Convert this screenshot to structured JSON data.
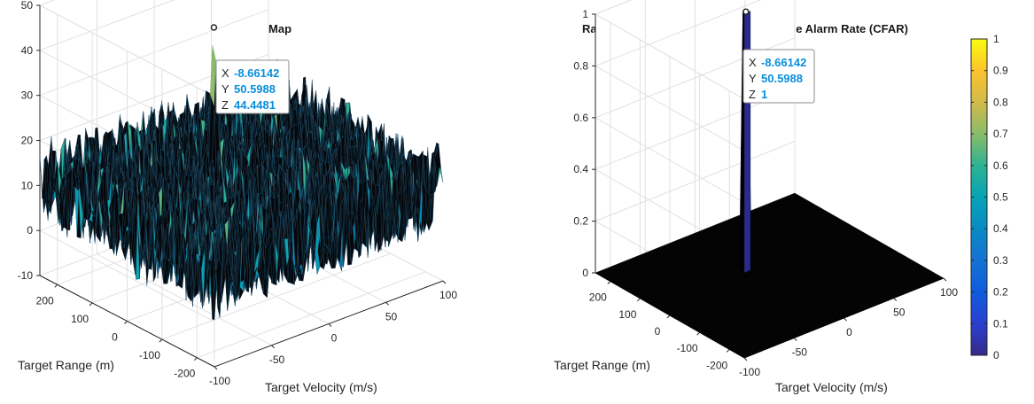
{
  "colors": {
    "datatip_value": "#0a8fdc",
    "axis": "#262626",
    "grid": "#e1e1e1"
  },
  "chart_data": [
    {
      "type": "surface",
      "title": "Range Doppler Map",
      "xlabel": "Target Velocity (m/s)",
      "ylabel": "Target Range (m)",
      "zlabel": "",
      "xlim": [
        -100,
        100
      ],
      "ylim": [
        -250,
        250
      ],
      "zlim": [
        -10,
        50
      ],
      "x_ticks": [
        -100,
        -50,
        0,
        50,
        100
      ],
      "y_ticks": [
        -200,
        -100,
        0,
        100,
        200
      ],
      "z_ticks": [
        -10,
        0,
        10,
        20,
        30,
        40,
        50
      ],
      "x_tick_labels": [
        "-100",
        "-50",
        "0",
        "50",
        "100"
      ],
      "y_tick_labels": [
        "-200",
        "-100",
        "0",
        "100",
        "200"
      ],
      "z_tick_labels": [
        "-10",
        "0",
        "10",
        "20",
        "30",
        "40",
        "50"
      ],
      "noise_floor_range": [
        0,
        20
      ],
      "peak": {
        "x": -8.66142,
        "y": 50.5988,
        "z": 44.4481
      },
      "datatip": {
        "x_key": "X",
        "x_val": "-8.66142",
        "y_key": "Y",
        "y_val": "50.5988",
        "z_key": "Z",
        "z_val": "44.4481"
      },
      "grid": true,
      "colormap": "parula"
    },
    {
      "type": "surface",
      "title": "Range Doppler Map with Constant False Alarm Rate (CFAR)",
      "xlabel": "Target Velocity (m/s)",
      "ylabel": "Target Range (m)",
      "zlabel": "",
      "xlim": [
        -100,
        100
      ],
      "ylim": [
        -250,
        250
      ],
      "zlim": [
        0,
        1
      ],
      "x_ticks": [
        -100,
        -50,
        0,
        50,
        100
      ],
      "y_ticks": [
        -200,
        -100,
        0,
        100,
        200
      ],
      "z_ticks": [
        0,
        0.2,
        0.4,
        0.6,
        0.8,
        1
      ],
      "x_tick_labels": [
        "-100",
        "-50",
        "0",
        "50",
        "100"
      ],
      "y_tick_labels": [
        "-200",
        "-100",
        "0",
        "100",
        "200"
      ],
      "z_tick_labels": [
        "0",
        "0.2",
        "0.4",
        "0.6",
        "0.8",
        "1"
      ],
      "peak": {
        "x": -8.66142,
        "y": 50.5988,
        "z": 1
      },
      "datatip": {
        "x_key": "X",
        "x_val": "-8.66142",
        "y_key": "Y",
        "y_val": "50.5988",
        "z_key": "Z",
        "z_val": "1"
      },
      "grid": true,
      "colormap": "parula",
      "colorbar": {
        "ticks": [
          0,
          0.1,
          0.2,
          0.3,
          0.4,
          0.5,
          0.6,
          0.7,
          0.8,
          0.9,
          1
        ],
        "tick_labels": [
          "0",
          "0.1",
          "0.2",
          "0.3",
          "0.4",
          "0.5",
          "0.6",
          "0.7",
          "0.8",
          "0.9",
          "1"
        ],
        "placement": "right"
      }
    }
  ]
}
